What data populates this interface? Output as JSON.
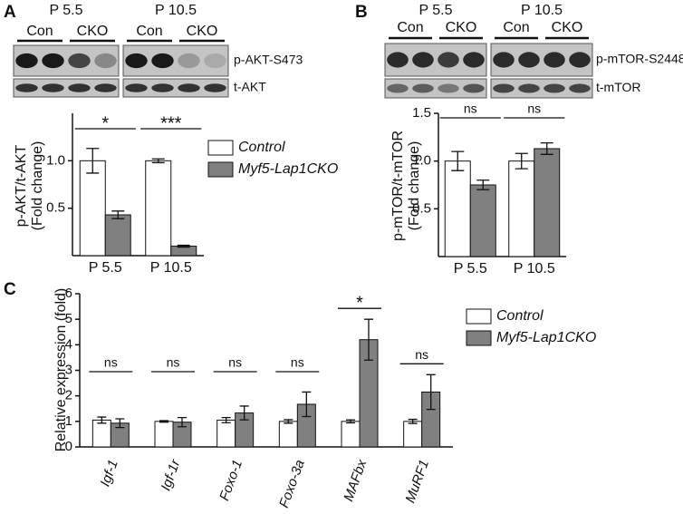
{
  "panel_labels": [
    "A",
    "B",
    "C"
  ],
  "blots": [
    {
      "ages": [
        "P 5.5",
        "P 10.5"
      ],
      "groups": [
        "Con",
        "CKO",
        "Con",
        "CKO"
      ],
      "bands": [
        "p-AKT-S473",
        "t-AKT"
      ]
    },
    {
      "ages": [
        "P 5.5",
        "P 10.5"
      ],
      "groups": [
        "Con",
        "CKO",
        "Con",
        "CKO"
      ],
      "bands": [
        "p-mTOR-S2448",
        "t-mTOR"
      ]
    }
  ],
  "chart_data": [
    {
      "type": "bar",
      "ylabel": [
        "p-AKT/t-AKT",
        "(Fold change)"
      ],
      "categories": [
        "P 5.5",
        "P 10.5"
      ],
      "series": [
        {
          "name": "Control",
          "color": "#ffffff",
          "values": [
            1.0,
            1.0
          ],
          "errors": [
            0.13,
            0.02
          ]
        },
        {
          "name": "Myf5-Lap1CKO",
          "color": "#808080",
          "values": [
            0.43,
            0.1
          ],
          "errors": [
            0.04,
            0.01
          ]
        }
      ],
      "significance": [
        "*",
        "***"
      ],
      "ylim": [
        0,
        1.5
      ],
      "yticks": [
        0.5,
        {
          "value": 1,
          "label": "1.0"
        }
      ],
      "legend": "right"
    },
    {
      "type": "bar",
      "ylabel": [
        "p-mTOR/t-mTOR",
        "(Fold change)"
      ],
      "categories": [
        "P 5.5",
        "P 10.5"
      ],
      "series": [
        {
          "color": "#ffffff",
          "values": [
            1.0,
            1.0
          ],
          "errors": [
            0.1,
            0.08
          ]
        },
        {
          "color": "#808080",
          "values": [
            0.75,
            1.13
          ],
          "errors": [
            0.05,
            0.06
          ]
        }
      ],
      "significance": [
        "ns",
        "ns"
      ],
      "ylim": [
        0,
        1.5
      ],
      "yticks": [
        0.5,
        {
          "value": 1,
          "label": "1.0"
        },
        1.5
      ]
    },
    {
      "type": "bar",
      "ylabel": "Relative expression (fold)",
      "categories": [
        "Igf-1",
        "Igf-1r",
        "Foxo-1",
        "Foxo-3a",
        "MAFbx",
        "MuRF1"
      ],
      "series": [
        {
          "name": "Control",
          "color": "#ffffff",
          "values": [
            1.05,
            1.0,
            1.05,
            1.0,
            1.0,
            1.0
          ],
          "errors": [
            0.12,
            0.03,
            0.1,
            0.07,
            0.06,
            0.08
          ]
        },
        {
          "name": "Myf5-Lap1CKO",
          "color": "#808080",
          "values": [
            0.93,
            0.97,
            1.33,
            1.67,
            4.2,
            2.15
          ],
          "errors": [
            0.17,
            0.18,
            0.27,
            0.48,
            0.8,
            0.68
          ]
        }
      ],
      "significance": [
        "ns",
        "ns",
        "ns",
        "ns",
        "*",
        "ns"
      ],
      "ylim": [
        0,
        6
      ],
      "yticks": [
        0,
        1,
        2,
        3,
        4,
        5,
        6
      ],
      "legend": "right"
    }
  ]
}
